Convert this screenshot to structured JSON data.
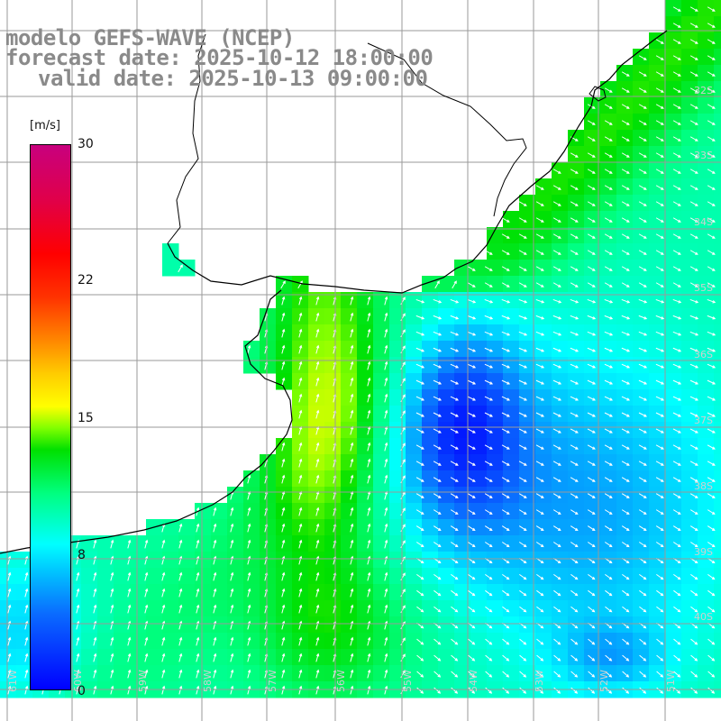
{
  "title": {
    "line1": "modelo GEFS-WAVE (NCEP)",
    "line2": "forecast date: 2025-10-12 18:00:00",
    "line3": "valid date: 2025-10-13 09:00:00"
  },
  "colorbar": {
    "unit": "[m/s]",
    "ticks": [
      "30",
      "22",
      "15",
      "8",
      "0"
    ],
    "tick_values": [
      30,
      22,
      15,
      8,
      0
    ],
    "vmin": 0,
    "vmax": 30,
    "colors": {
      "0": "#0000ff",
      "8": "#00ffff",
      "15": "#ffff00",
      "22": "#ff6600",
      "30": "#c8007e"
    }
  },
  "grid": {
    "lat_labels": [
      "32S",
      "33S",
      "34S",
      "35S",
      "36S",
      "37S",
      "38S",
      "39S",
      "40S"
    ],
    "lon_labels": [
      "61W",
      "60W",
      "59W",
      "58W",
      "57W",
      "56W",
      "55W",
      "54W",
      "53W",
      "52W",
      "51W"
    ]
  },
  "colors": {
    "land": "#ffffff",
    "coastline": "#000000",
    "gridline": "#9a9a9a",
    "arrow": "#ffffff"
  }
}
